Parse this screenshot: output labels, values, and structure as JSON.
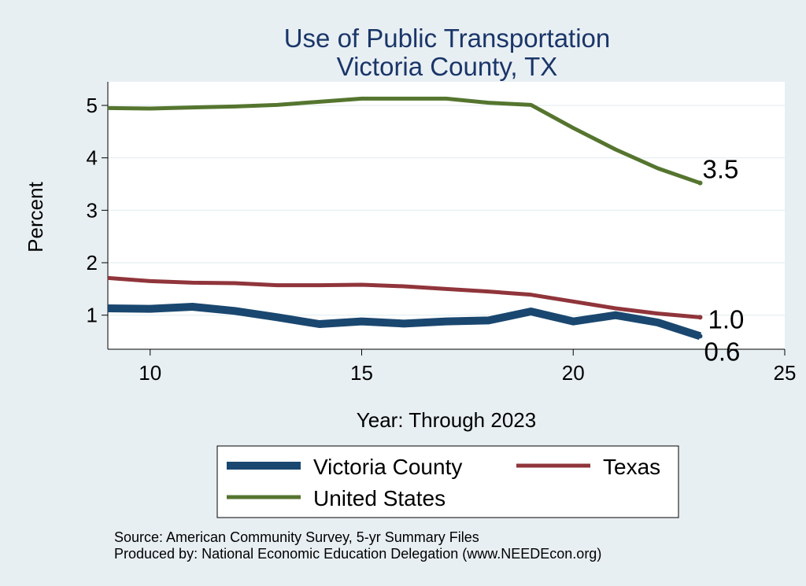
{
  "chart_data": {
    "type": "line",
    "title": [
      "Use of Public Transportation",
      "Victoria County, TX"
    ],
    "xlabel": "Year: Through 2023",
    "ylabel": "Percent",
    "xlim": [
      9,
      25
    ],
    "ylim": [
      0.35,
      5.45
    ],
    "xticks": [
      10,
      15,
      20,
      25
    ],
    "yticks": [
      1,
      2,
      3,
      4,
      5
    ],
    "grid": "horizontal",
    "legend_position": "bottom",
    "series": [
      {
        "name": "Victoria County",
        "color": "#1a476f",
        "x": [
          9,
          10,
          11,
          12,
          13,
          14,
          15,
          16,
          17,
          18,
          19,
          20,
          21,
          22,
          23
        ],
        "y": [
          1.13,
          1.12,
          1.16,
          1.08,
          0.96,
          0.83,
          0.88,
          0.84,
          0.88,
          0.9,
          1.07,
          0.88,
          1.0,
          0.86,
          0.6
        ],
        "end_label": "0.6"
      },
      {
        "name": "Texas",
        "color": "#90353b",
        "x": [
          9,
          10,
          11,
          12,
          13,
          14,
          15,
          16,
          17,
          18,
          19,
          20,
          21,
          22,
          23
        ],
        "y": [
          1.71,
          1.65,
          1.62,
          1.61,
          1.57,
          1.57,
          1.58,
          1.55,
          1.5,
          1.45,
          1.39,
          1.26,
          1.13,
          1.03,
          0.96
        ],
        "end_label": "1.0"
      },
      {
        "name": "United States",
        "color": "#55752f",
        "x": [
          9,
          10,
          11,
          12,
          13,
          14,
          15,
          16,
          17,
          18,
          19,
          20,
          21,
          22,
          23
        ],
        "y": [
          4.95,
          4.94,
          4.96,
          4.98,
          5.01,
          5.07,
          5.13,
          5.13,
          5.13,
          5.05,
          5.01,
          4.57,
          4.16,
          3.8,
          3.52
        ],
        "end_label": "3.5"
      }
    ]
  },
  "footer": {
    "source": "Source: American Community Survey, 5-yr Summary Files",
    "produced_by": "Produced by: National Economic Education Delegation (www.NEEDEcon.org)"
  }
}
